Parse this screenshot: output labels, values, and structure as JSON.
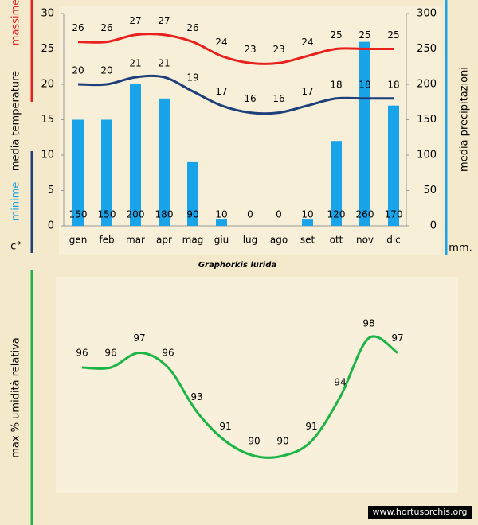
{
  "chart_data": [
    {
      "type": "combo",
      "title": "Graphorkis lurida",
      "ylabel_parts": [
        "massime",
        "media temperature",
        "minime"
      ],
      "ylabel_colors": [
        "#e8201e",
        "#000000",
        "#1aa3e8"
      ],
      "yunit": "c°",
      "y2label": "media precipitazioni",
      "y2unit": "mm.",
      "categories": [
        "gen",
        "feb",
        "mar",
        "apr",
        "mag",
        "giu",
        "lug",
        "ago",
        "set",
        "ott",
        "nov",
        "dic"
      ],
      "series": [
        {
          "type": "bar",
          "axis": "y2",
          "color": "#19a4ea",
          "values": [
            150,
            150,
            200,
            180,
            90,
            10,
            0,
            0,
            10,
            120,
            260,
            170
          ]
        },
        {
          "type": "line",
          "color": "#e8201e",
          "values": [
            26,
            26,
            27,
            27,
            26,
            24,
            23,
            23,
            24,
            25,
            25,
            25
          ]
        },
        {
          "type": "line",
          "color": "#1f3f7a",
          "values": [
            20,
            20,
            21,
            21,
            19,
            17,
            16,
            16,
            17,
            18,
            18,
            18
          ]
        }
      ],
      "ylim": [
        0,
        30
      ],
      "yticks": [
        0,
        5,
        10,
        15,
        20,
        25,
        30
      ],
      "y2lim": [
        0,
        300
      ],
      "y2ticks": [
        0,
        50,
        100,
        150,
        200,
        250,
        300
      ]
    },
    {
      "type": "line",
      "ylabel": "max % umidità relativa",
      "color": "#1db446",
      "values": [
        96,
        96,
        97,
        96,
        93,
        91,
        90,
        90,
        91,
        94,
        98,
        97
      ]
    }
  ],
  "watermark": "www.hortusorchis.org"
}
